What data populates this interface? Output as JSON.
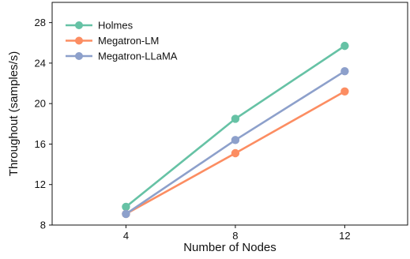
{
  "chart_data": {
    "type": "line",
    "x": [
      4,
      8,
      12
    ],
    "xlabel": "Number of Nodes",
    "ylabel": "Throughout (samples/s)",
    "xlim": [
      1.3,
      14.3
    ],
    "ylim": [
      8,
      30
    ],
    "xticks": [
      "4",
      "8",
      "12"
    ],
    "yticks": [
      "8",
      "12",
      "16",
      "20",
      "24",
      "28"
    ],
    "grid": false,
    "legend_position": "top-left",
    "series": [
      {
        "name": "Holmes",
        "color": "#66c2a5",
        "values": [
          9.8,
          18.5,
          25.7
        ]
      },
      {
        "name": "Megatron-LM",
        "color": "#fc8d62",
        "values": [
          9.1,
          15.1,
          21.2
        ]
      },
      {
        "name": "Megatron-LLaMA",
        "color": "#8da0cb",
        "values": [
          9.1,
          16.4,
          23.2
        ]
      }
    ]
  }
}
